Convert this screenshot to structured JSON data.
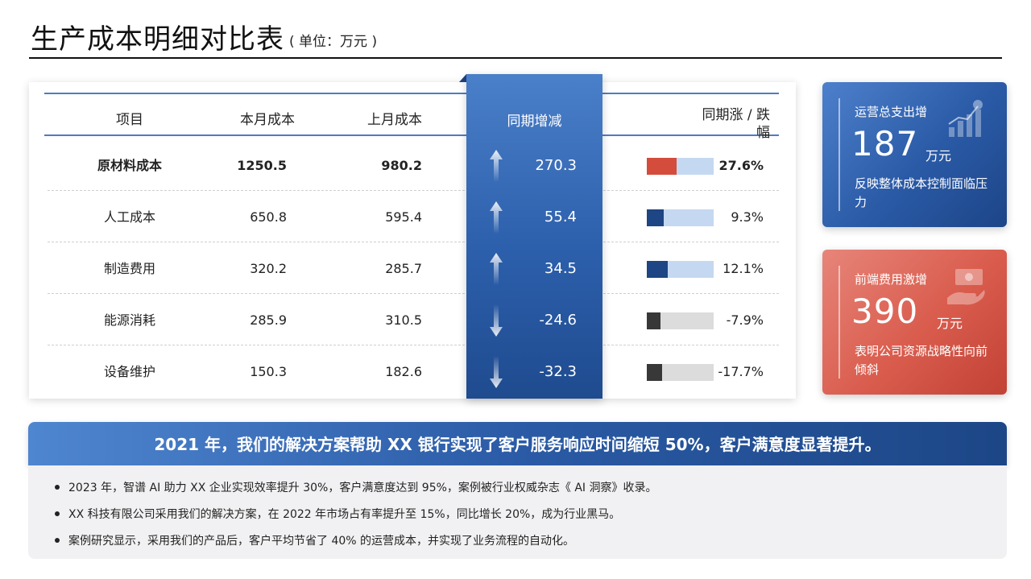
{
  "header": {
    "title": "生产成本明细对比表",
    "unit": "( 单位：万元 )"
  },
  "table": {
    "columns": [
      "项目",
      "本月成本",
      "上月成本",
      "同期增减",
      "同期涨 / 跌幅"
    ],
    "rows": [
      {
        "item": "原材料成本",
        "current": "1250.5",
        "previous": "980.2",
        "change": "270.3",
        "pct": "27.6%",
        "pct_fraction": 0.44,
        "direction": "up",
        "bar_color": "#d44c3c",
        "bold": true
      },
      {
        "item": "人工成本",
        "current": "650.8",
        "previous": "595.4",
        "change": "55.4",
        "pct": "9.3%",
        "pct_fraction": 0.25,
        "direction": "up",
        "bar_color": "#1e4584",
        "bold": false
      },
      {
        "item": "制造费用",
        "current": "320.2",
        "previous": "285.7",
        "change": "34.5",
        "pct": "12.1%",
        "pct_fraction": 0.31,
        "direction": "up",
        "bar_color": "#1e4584",
        "bold": false
      },
      {
        "item": "能源消耗",
        "current": "285.9",
        "previous": "310.5",
        "change": "-24.6",
        "pct": "-7.9%",
        "pct_fraction": 0.21,
        "direction": "down",
        "bar_color": "#383838",
        "bold": false
      },
      {
        "item": "设备维护",
        "current": "150.3",
        "previous": "182.6",
        "change": "-32.3",
        "pct": "-17.7%",
        "pct_fraction": 0.23,
        "direction": "down",
        "bar_color": "#383838",
        "bold": false
      }
    ],
    "colors": {
      "track_up": "#c5d8f1",
      "track_down": "#dcdcdc"
    }
  },
  "kpis": [
    {
      "label": "运营总支出增",
      "value": "187",
      "unit": "万元",
      "desc": "反映整体成本控制面临压力",
      "icon": "growth-chart-icon"
    },
    {
      "label": "前端费用激增",
      "value": "390",
      "unit": "万元",
      "desc": "表明公司资源战略性向前倾斜",
      "icon": "money-hand-icon"
    }
  ],
  "banner": {
    "text": "2021 年，我们的解决方案帮助 XX 银行实现了客户服务响应时间缩短 50%，客户满意度显著提升。"
  },
  "bullets": [
    "2023 年，智谱 AI 助力 XX 企业实现效率提升 30%，客户满意度达到 95%，案例被行业权威杂志《 AI 洞察》收录。",
    "XX 科技有限公司采用我们的解决方案，在 2022 年市场占有率提升至 15%，同比增长 20%，成为行业黑马。",
    "案例研究显示，采用我们的产品后，客户平均节省了 40% 的运营成本，并实现了业务流程的自动化。"
  ]
}
